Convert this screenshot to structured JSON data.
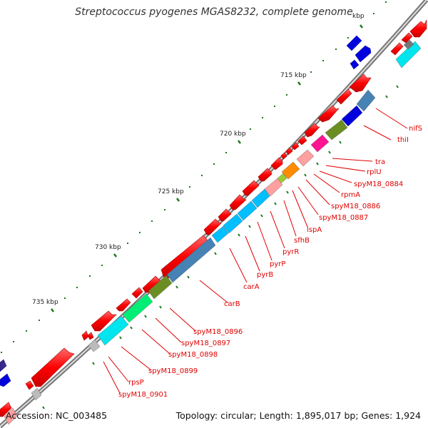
{
  "title": "Streptococcus pyogenes MGAS8232, complete genome",
  "footer": {
    "accession": "Accession: NC_003485",
    "topology": "Topology: circular; Length: 1,895,017 bp; Genes: 1,924"
  },
  "ruler": {
    "labels": [
      "kbp",
      "715 kbp",
      "720 kbp",
      "725 kbp",
      "730 kbp",
      "735 kbp"
    ]
  },
  "gene_labels": [
    "nifS",
    "thiI",
    "tra",
    "rplU",
    "spyM18_0884",
    "rpmA",
    "spyM18_0886",
    "spyM18_0887",
    "lspA",
    "sfhB",
    "pyrR",
    "pyrP",
    "pyrB",
    "carA",
    "carB",
    "spyM18_0896",
    "spyM18_0897",
    "spyM18_0898",
    "spyM18_0899",
    "rpsP",
    "spyM18_0901"
  ],
  "colors": {
    "forward_strand": "#ff0000",
    "backbone": "#888888",
    "label_line": "#e00000",
    "tick": "#1a7a1a",
    "cog_blue": "#0000dd",
    "cog_cyan": "#00e5ee",
    "cog_olive": "#6b8e23",
    "cog_steelblue": "#4682b4",
    "cog_pink": "#ffa0a0",
    "cog_magenta": "#ff1493",
    "cog_orange": "#ff8c00",
    "cog_green": "#00ee76",
    "cog_gray": "#bbbbbb"
  }
}
